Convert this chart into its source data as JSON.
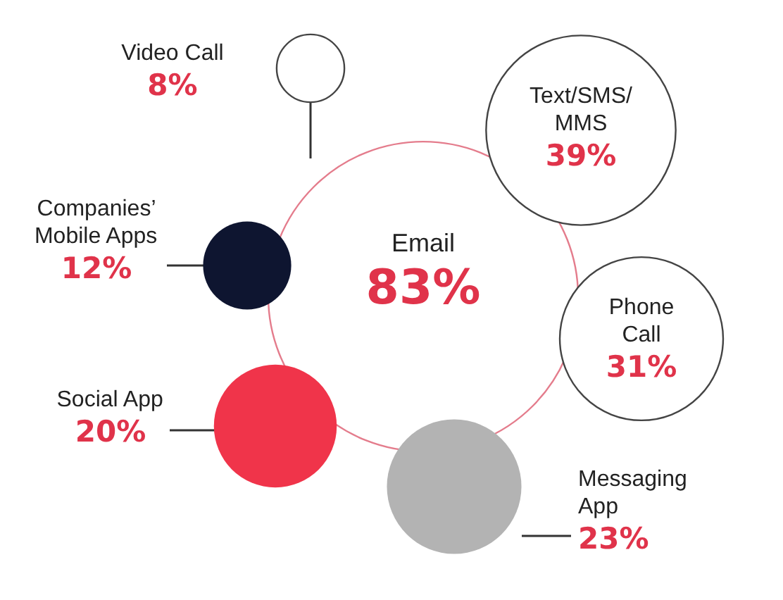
{
  "chart_data": {
    "type": "other",
    "categories": [
      "Email",
      "Text/SMS/\nMMS",
      "Phone\nCall",
      "Messaging\nApp",
      "Social App",
      "Companies’\nMobile Apps",
      "Video Call"
    ],
    "values": [
      83,
      39,
      31,
      23,
      20,
      12,
      8
    ],
    "colors": [
      "#ffffff",
      "#ffffff",
      "#ffffff",
      "#b3b3b3",
      "#f0344a",
      "#0e1530",
      "#ffffff"
    ],
    "value_labels": [
      "83%",
      "39%",
      "31%",
      "23%",
      "20%",
      "12%",
      "8%"
    ]
  }
}
